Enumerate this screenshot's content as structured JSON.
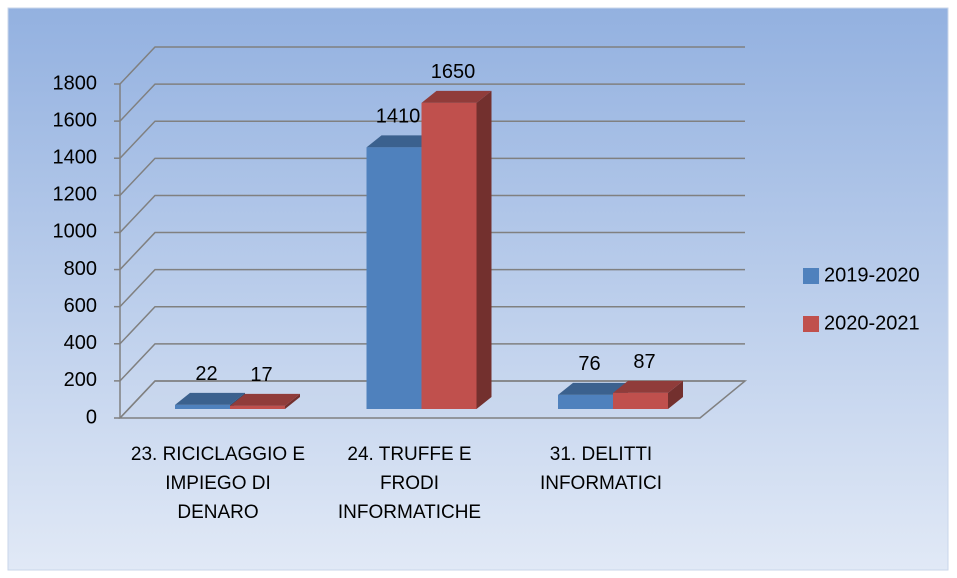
{
  "chart_data": {
    "type": "bar3d",
    "categories": [
      "23. RICICLAGGIO E IMPIEGO DI DENARO",
      "24. TRUFFE E FRODI INFORMATICHE",
      "31. DELITTI INFORMATICI"
    ],
    "series": [
      {
        "name": "2019-2020",
        "color": "#4f81bd",
        "values": [
          22,
          1410,
          76
        ]
      },
      {
        "name": "2020-2021",
        "color": "#c0504d",
        "values": [
          17,
          1650,
          87
        ]
      }
    ],
    "ylim": [
      0,
      1800
    ],
    "yticks": [
      0,
      200,
      400,
      600,
      800,
      1000,
      1200,
      1400,
      1600,
      1800
    ],
    "grid": true,
    "legend": "right"
  }
}
